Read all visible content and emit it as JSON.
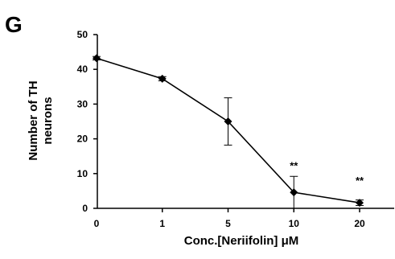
{
  "panel_label": "G",
  "chart_data": {
    "type": "line",
    "xlabel": "Conc.[Neriifolin] μM",
    "ylabel_lines": [
      "Number of TH",
      "neurons"
    ],
    "categories": [
      "0",
      "1",
      "5",
      "10",
      "20"
    ],
    "ylim": [
      0,
      50
    ],
    "yticks": [
      0,
      10,
      20,
      30,
      40,
      50
    ],
    "grid": false,
    "series": [
      {
        "values": [
          43.2,
          37.3,
          25.0,
          4.6,
          1.6
        ],
        "error": [
          0.5,
          0.6,
          6.8,
          4.6,
          0.8
        ],
        "marker": "diamond",
        "color": "#000000"
      }
    ],
    "annotations": [
      {
        "category": "10",
        "text": "**"
      },
      {
        "category": "20",
        "text": "**"
      }
    ]
  }
}
